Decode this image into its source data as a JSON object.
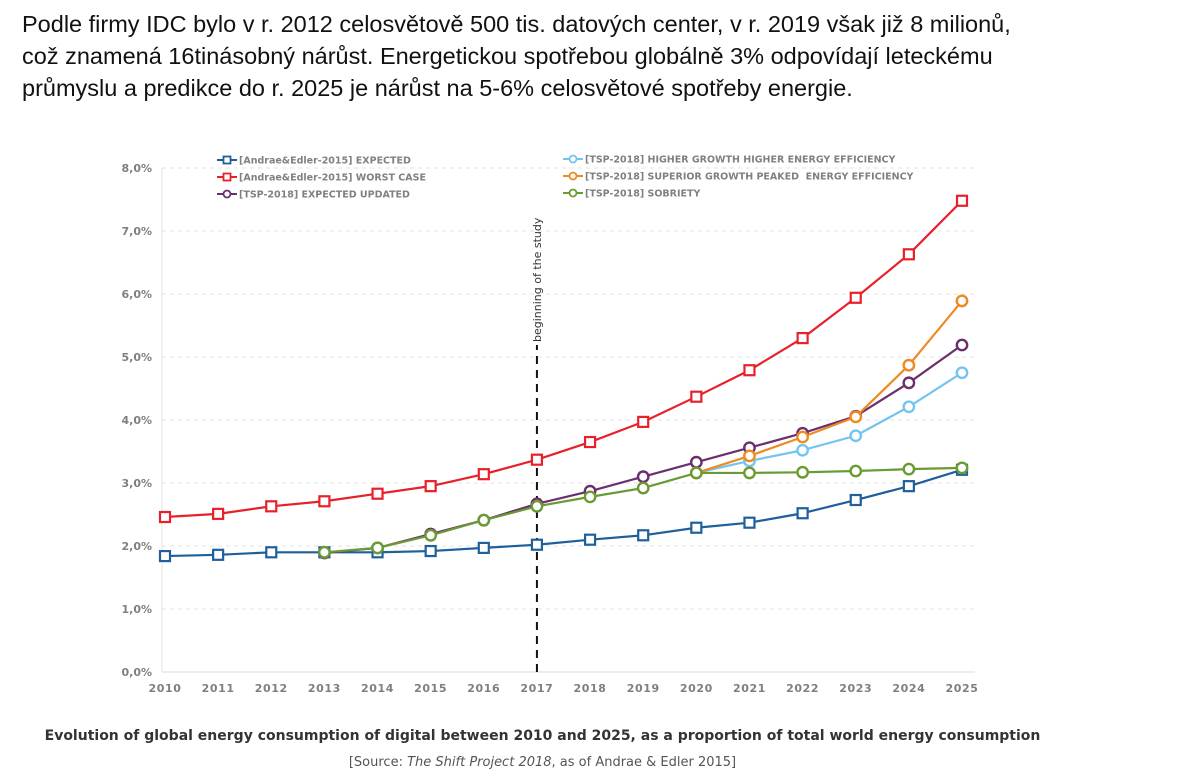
{
  "intro_text": {
    "line1": "Podle firmy IDC bylo v r. 2012 celosvětově 500 tis. datových center, v r. 2019 však již 8 milionů,",
    "line2": "což znamená 16tinásobný nárůst. Energetickou spotřebou globálně 3% odpovídají leteckému",
    "line3": "průmyslu a predikce do r. 2025 je nárůst na 5-6% celosvětové spotřeby energie."
  },
  "caption": {
    "title": "Evolution of global energy consumption of digital between 2010 and 2025, as a proportion of total world energy consumption",
    "source_prefix": "[Source: ",
    "source_italic": "The Shift Project 2018",
    "source_suffix": ", as of Andrae & Edler 2015]"
  },
  "chart_data": {
    "type": "line",
    "title": "Evolution of global energy consumption of digital between 2010 and 2025, as a proportion of total world energy consumption",
    "xlabel": "",
    "ylabel": "",
    "x": [
      2010,
      2011,
      2012,
      2013,
      2014,
      2015,
      2016,
      2017,
      2018,
      2019,
      2020,
      2021,
      2022,
      2023,
      2024,
      2025
    ],
    "ylim": [
      0,
      8
    ],
    "y_ticks": [
      "0,0%",
      "1,0%",
      "2,0%",
      "3,0%",
      "4,0%",
      "5,0%",
      "6,0%",
      "7,0%",
      "8,0%"
    ],
    "y_unit": "% of total world energy consumption",
    "grid": true,
    "legend": "top",
    "annotations": [
      {
        "type": "vertical-dashed-line",
        "x": 2017,
        "label": "beginning of the study"
      }
    ],
    "series": [
      {
        "name": "[Andrae&Edler-2015] EXPECTED",
        "color": "#1f5f9b",
        "marker": "square",
        "start_year": 2010,
        "values": [
          1.84,
          1.86,
          1.9,
          1.9,
          1.9,
          1.92,
          1.97,
          2.02,
          2.1,
          2.17,
          2.29,
          2.37,
          2.52,
          2.73,
          2.95,
          3.21
        ]
      },
      {
        "name": "[Andrae&Edler-2015] WORST CASE",
        "color": "#e8202a",
        "marker": "square",
        "start_year": 2010,
        "values": [
          2.46,
          2.51,
          2.63,
          2.71,
          2.83,
          2.95,
          3.14,
          3.37,
          3.65,
          3.97,
          4.37,
          4.79,
          5.3,
          5.94,
          6.63,
          7.48
        ]
      },
      {
        "name": "[TSP-2018] EXPECTED UPDATED",
        "color": "#6b2f6e",
        "marker": "circle",
        "start_year": 2013,
        "values": [
          1.89,
          1.97,
          2.19,
          2.41,
          2.67,
          2.87,
          3.1,
          3.33,
          3.56,
          3.79,
          4.06,
          4.59,
          5.19
        ]
      },
      {
        "name": "[TSP-2018] HIGHER GROWTH HIGHER ENERGY EFFICIENCY",
        "color": "#74c4f0",
        "marker": "circle",
        "start_year": 2020,
        "values": [
          3.16,
          3.35,
          3.52,
          3.75,
          4.21,
          4.75
        ]
      },
      {
        "name": "[TSP-2018] SUPERIOR GROWTH PEAKED  ENERGY EFFICIENCY",
        "color": "#ef8a22",
        "marker": "circle",
        "start_year": 2020,
        "values": [
          3.16,
          3.43,
          3.73,
          4.05,
          4.87,
          5.89
        ]
      },
      {
        "name": "[TSP-2018] SOBRIETY",
        "color": "#6a9a32",
        "marker": "circle",
        "start_year": 2013,
        "values": [
          1.9,
          1.97,
          2.17,
          2.41,
          2.63,
          2.78,
          2.92,
          3.16,
          3.16,
          3.17,
          3.19,
          3.22,
          3.24
        ]
      }
    ]
  }
}
